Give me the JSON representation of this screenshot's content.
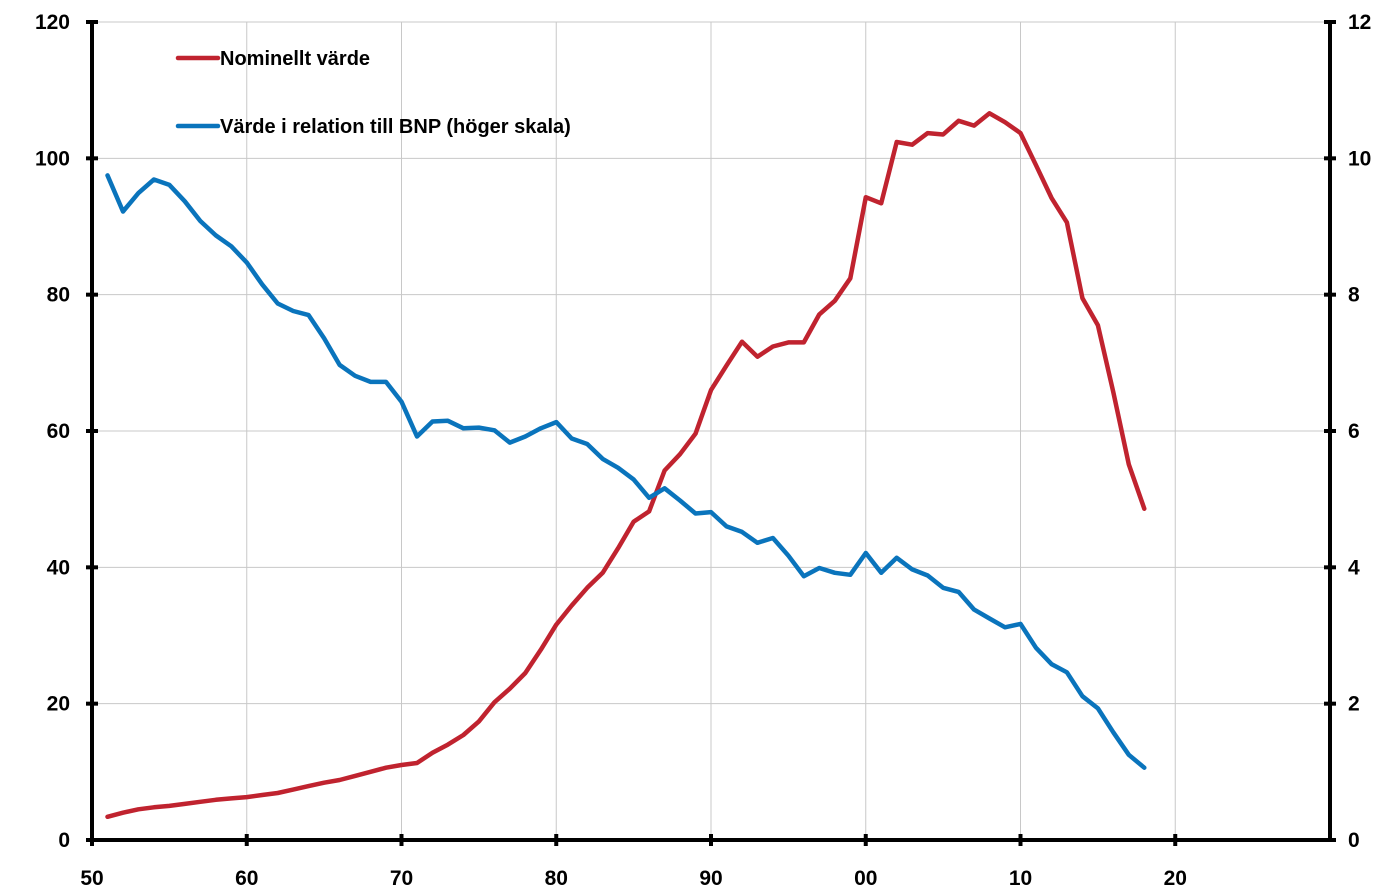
{
  "chart_data": {
    "type": "line",
    "title": "",
    "xlabel": "",
    "ylabel": "",
    "y2label": "",
    "x_range": [
      1950,
      2030
    ],
    "x_ticks": [
      1950,
      1960,
      1970,
      1980,
      1990,
      2000,
      2010,
      2020
    ],
    "x_tick_labels": [
      "50",
      "60",
      "70",
      "80",
      "90",
      "00",
      "10",
      "20"
    ],
    "ylim": [
      0,
      120
    ],
    "y_ticks": [
      0,
      20,
      40,
      60,
      80,
      100,
      120
    ],
    "y_tick_labels": [
      "0",
      "20",
      "40",
      "60",
      "80",
      "100",
      "120"
    ],
    "y2lim": [
      0,
      12
    ],
    "y2_ticks": [
      0,
      2,
      4,
      6,
      8,
      10,
      12
    ],
    "y2_tick_labels": [
      "0",
      "2",
      "4",
      "6",
      "8",
      "10",
      "12"
    ],
    "grid": true,
    "legend_position": "top-left",
    "series": [
      {
        "name": "Nominellt värde",
        "axis": "left",
        "color": "#C0232F",
        "x": [
          1951,
          1952,
          1953,
          1954,
          1955,
          1956,
          1957,
          1958,
          1959,
          1960,
          1961,
          1962,
          1963,
          1964,
          1965,
          1966,
          1967,
          1968,
          1969,
          1970,
          1971,
          1972,
          1973,
          1974,
          1975,
          1976,
          1977,
          1978,
          1979,
          1980,
          1981,
          1982,
          1983,
          1984,
          1985,
          1986,
          1987,
          1988,
          1989,
          1990,
          1991,
          1992,
          1993,
          1994,
          1995,
          1996,
          1997,
          1998,
          1999,
          2000,
          2001,
          2002,
          2003,
          2004,
          2005,
          2006,
          2007,
          2008,
          2009,
          2010,
          2011,
          2012,
          2013,
          2014,
          2015,
          2016,
          2017,
          2018
        ],
        "values": [
          3.4,
          4.0,
          4.5,
          4.8,
          5.0,
          5.3,
          5.6,
          5.9,
          6.1,
          6.3,
          6.6,
          6.9,
          7.4,
          7.9,
          8.4,
          8.8,
          9.4,
          10.0,
          10.6,
          11.0,
          11.3,
          12.8,
          14.0,
          15.4,
          17.4,
          20.2,
          22.2,
          24.5,
          27.9,
          31.6,
          34.4,
          37.0,
          39.2,
          42.8,
          46.7,
          48.2,
          54.2,
          56.6,
          59.6,
          66.0,
          69.6,
          73.1,
          70.9,
          72.4,
          73.0,
          73.0,
          77.1,
          79.1,
          82.4,
          94.3,
          93.4,
          102.4,
          102.0,
          103.7,
          103.5,
          105.5,
          104.8,
          106.6,
          105.3,
          103.7,
          99.0,
          94.2,
          90.6,
          79.5,
          75.5,
          65.7,
          55.1,
          48.6
        ]
      },
      {
        "name": "Värde i relation till BNP (höger skala)",
        "axis": "right",
        "color": "#0A74BC",
        "x": [
          1951,
          1952,
          1953,
          1954,
          1955,
          1956,
          1957,
          1958,
          1959,
          1960,
          1961,
          1962,
          1963,
          1964,
          1965,
          1966,
          1967,
          1968,
          1969,
          1970,
          1971,
          1972,
          1973,
          1974,
          1975,
          1976,
          1977,
          1978,
          1979,
          1980,
          1981,
          1982,
          1983,
          1984,
          1985,
          1986,
          1987,
          1988,
          1989,
          1990,
          1991,
          1992,
          1993,
          1994,
          1995,
          1996,
          1997,
          1998,
          1999,
          2000,
          2001,
          2002,
          2003,
          2004,
          2005,
          2006,
          2007,
          2008,
          2009,
          2010,
          2011,
          2012,
          2013,
          2014,
          2015,
          2016,
          2017,
          2018
        ],
        "values": [
          9.75,
          9.22,
          9.49,
          9.69,
          9.61,
          9.37,
          9.08,
          8.87,
          8.71,
          8.47,
          8.15,
          7.87,
          7.76,
          7.7,
          7.36,
          6.97,
          6.81,
          6.72,
          6.72,
          6.43,
          5.92,
          6.14,
          6.15,
          6.04,
          6.05,
          6.01,
          5.83,
          5.92,
          6.04,
          6.13,
          5.89,
          5.81,
          5.59,
          5.46,
          5.29,
          5.02,
          5.16,
          4.98,
          4.79,
          4.81,
          4.6,
          4.52,
          4.36,
          4.43,
          4.17,
          3.87,
          3.99,
          3.92,
          3.89,
          4.21,
          3.92,
          4.14,
          3.97,
          3.88,
          3.7,
          3.64,
          3.38,
          3.25,
          3.12,
          3.17,
          2.82,
          2.58,
          2.46,
          2.11,
          1.93,
          1.58,
          1.25,
          1.06
        ]
      }
    ]
  }
}
